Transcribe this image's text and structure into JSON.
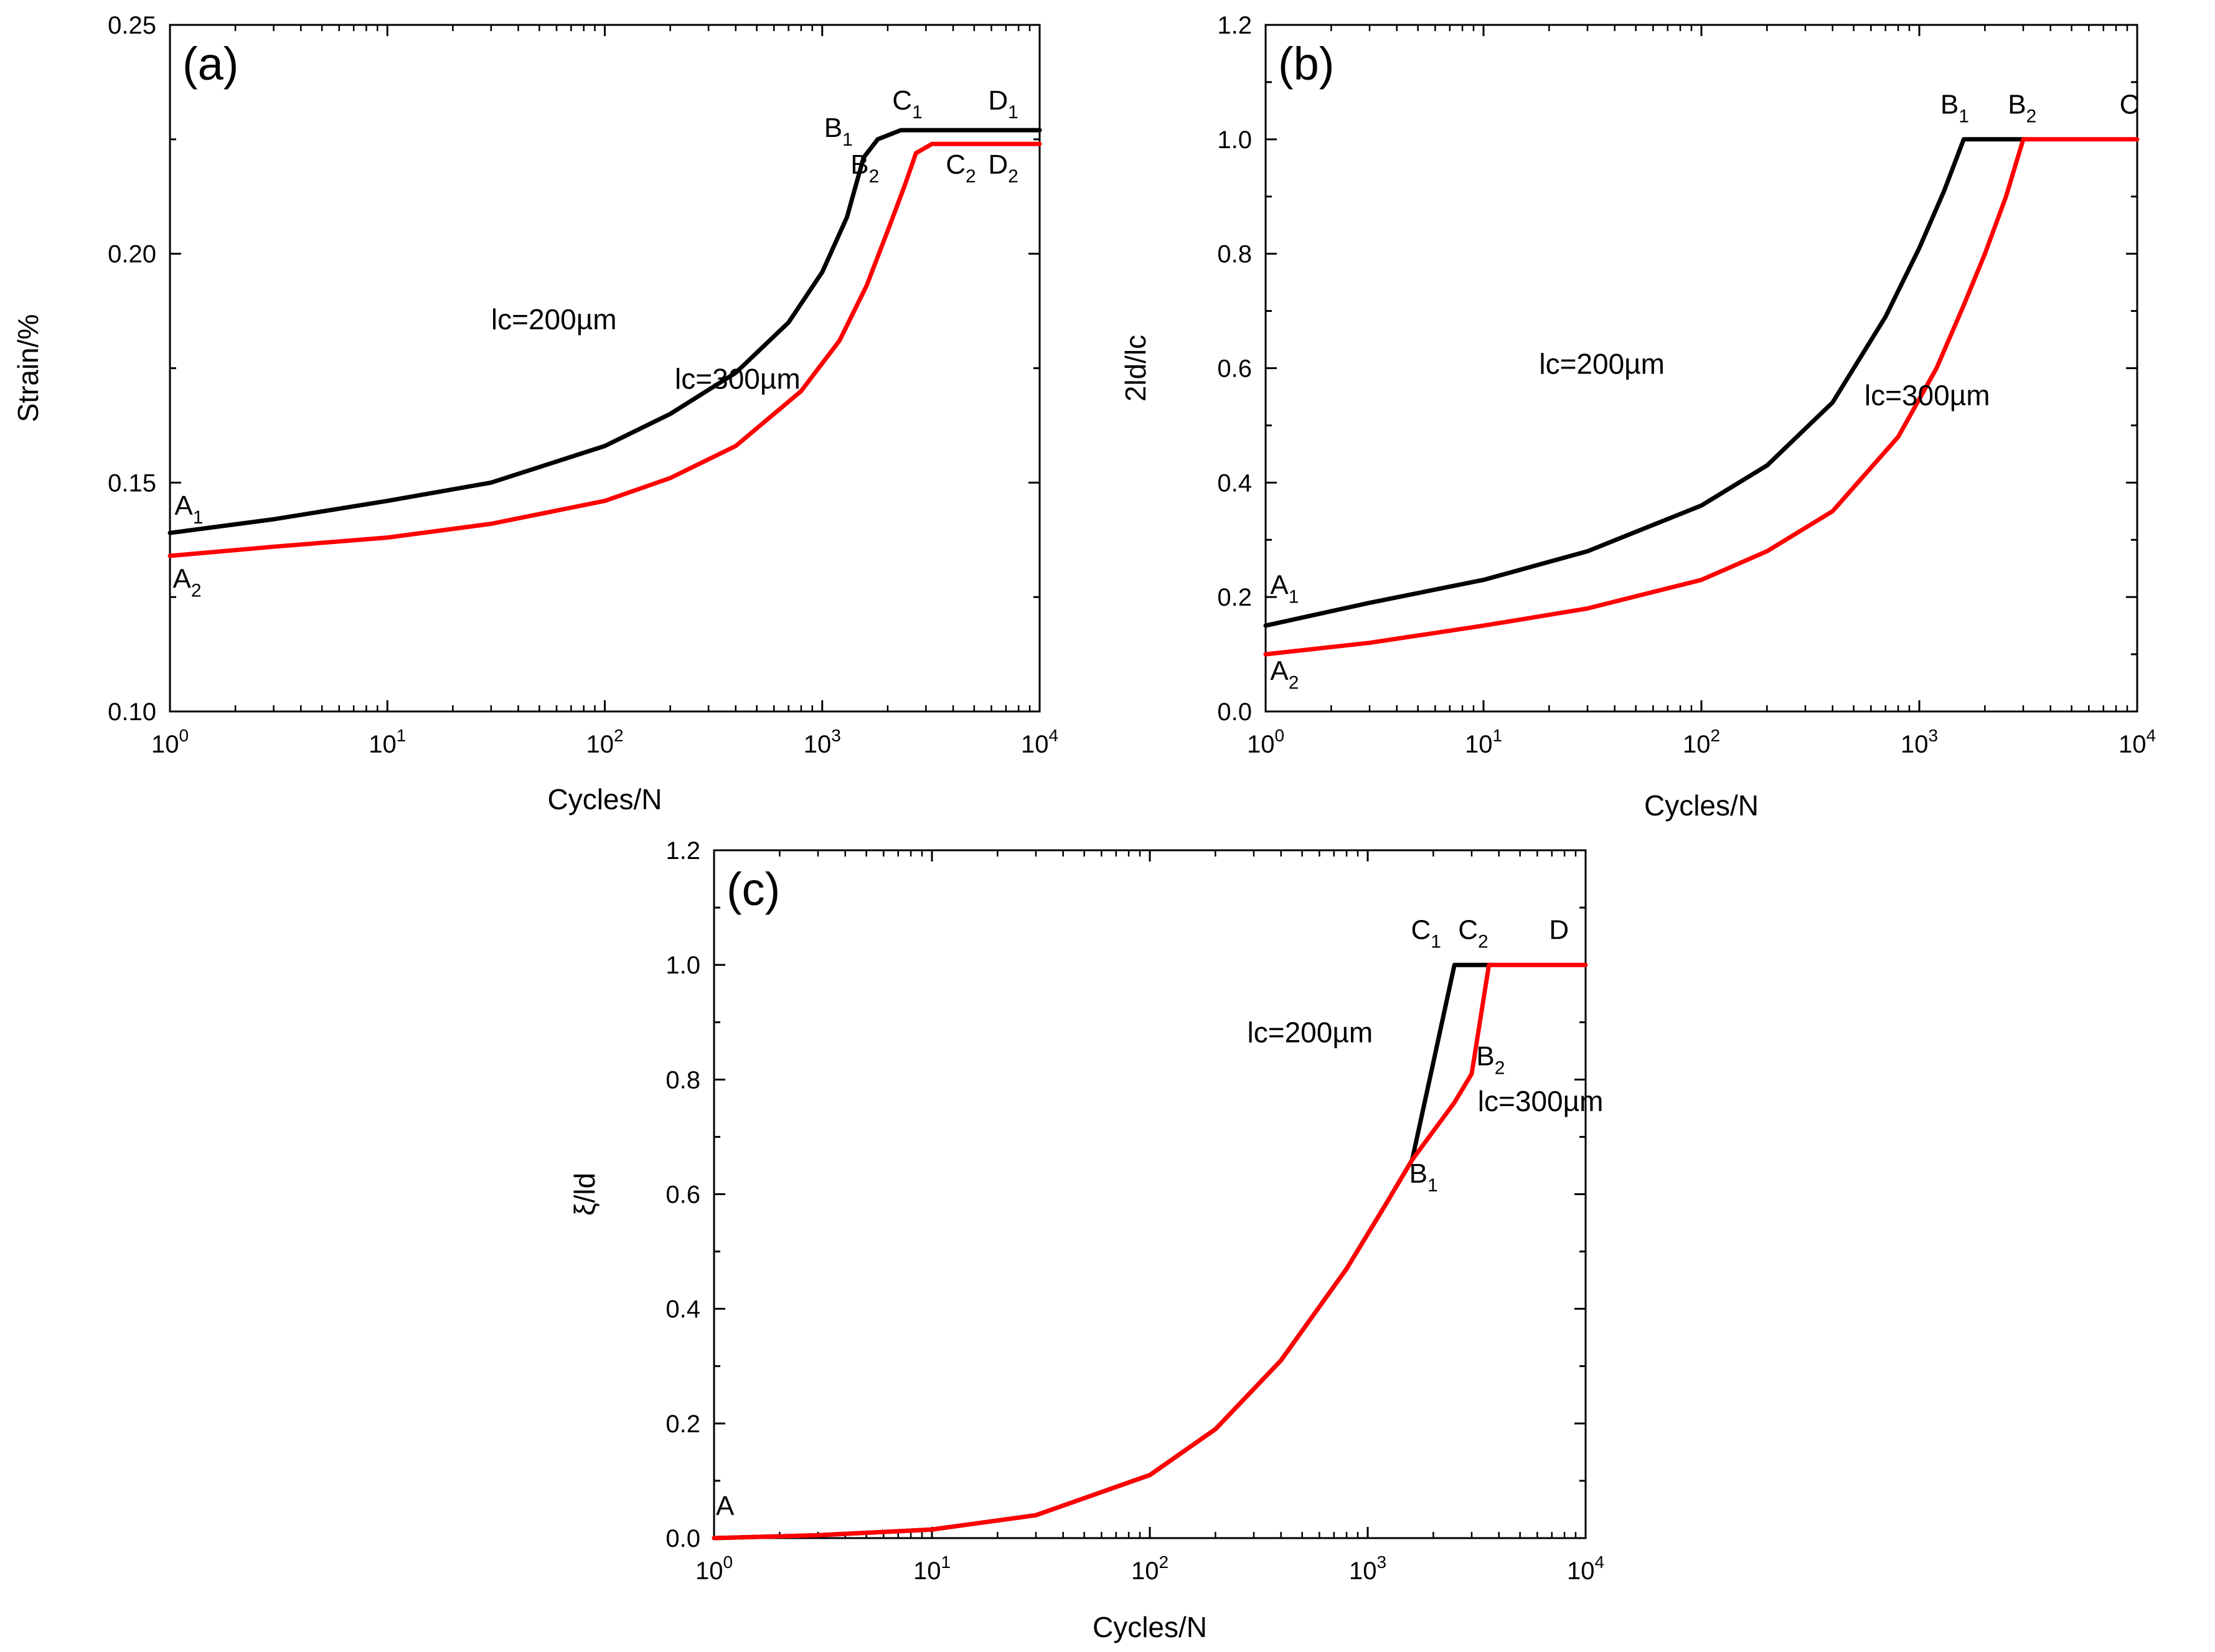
{
  "figure": {
    "background": "#ffffff"
  },
  "chart_data": [
    {
      "id": "a",
      "type": "line",
      "panel_label": "(a)",
      "xlabel": "Cycles/N",
      "ylabel": "Strain/%",
      "xscale": "log",
      "xlim": [
        1,
        10000
      ],
      "ylim": [
        0.1,
        0.25
      ],
      "xticks": [
        1,
        10,
        100,
        1000,
        10000
      ],
      "xtick_labels": [
        {
          "base": "10",
          "exp": "0"
        },
        {
          "base": "10",
          "exp": "1"
        },
        {
          "base": "10",
          "exp": "2"
        },
        {
          "base": "10",
          "exp": "3"
        },
        {
          "base": "10",
          "exp": "4"
        }
      ],
      "yticks": [
        0.1,
        0.15,
        0.2,
        0.25
      ],
      "ytick_labels": [
        "0.10",
        "0.15",
        "0.20",
        "0.25"
      ],
      "series": [
        {
          "name": "lc=200µm",
          "color": "#000000",
          "x": [
            1,
            3,
            10,
            30,
            100,
            200,
            400,
            700,
            1000,
            1300,
            1550,
            1800,
            2300,
            10000
          ],
          "y": [
            0.139,
            0.142,
            0.146,
            0.15,
            0.158,
            0.165,
            0.174,
            0.185,
            0.196,
            0.208,
            0.221,
            0.225,
            0.227,
            0.227
          ]
        },
        {
          "name": "lc=300µm",
          "color": "#ff0000",
          "x": [
            1,
            3,
            10,
            30,
            100,
            200,
            400,
            800,
            1200,
            1600,
            2000,
            2400,
            2700,
            3200,
            10000
          ],
          "y": [
            0.134,
            0.136,
            0.138,
            0.141,
            0.146,
            0.151,
            0.158,
            0.17,
            0.181,
            0.193,
            0.205,
            0.215,
            0.222,
            0.224,
            0.224
          ]
        }
      ],
      "point_labels": [
        {
          "base": "A",
          "sub": "1",
          "x": 1.05,
          "y": 0.143
        },
        {
          "base": "A",
          "sub": "2",
          "x": 1.03,
          "y": 0.127
        },
        {
          "base": "B",
          "sub": "1",
          "x": 1020,
          "y": 0.2255
        },
        {
          "base": "C",
          "sub": "1",
          "x": 2100,
          "y": 0.2315
        },
        {
          "base": "D",
          "sub": "1",
          "x": 5800,
          "y": 0.2315
        },
        {
          "base": "B",
          "sub": "2",
          "x": 1350,
          "y": 0.2175
        },
        {
          "base": "C",
          "sub": "2",
          "x": 3700,
          "y": 0.2175
        },
        {
          "base": "D",
          "sub": "2",
          "x": 5800,
          "y": 0.2175
        }
      ],
      "curve_labels": [
        {
          "text": "lc=200µm",
          "x": 30,
          "y": 0.1835
        },
        {
          "text": "lc=300µm",
          "x": 210,
          "y": 0.1705
        }
      ]
    },
    {
      "id": "b",
      "type": "line",
      "panel_label": "(b)",
      "xlabel": "Cycles/N",
      "ylabel": "2ld/lc",
      "xscale": "log",
      "xlim": [
        1,
        10000
      ],
      "ylim": [
        0.0,
        1.2
      ],
      "xticks": [
        1,
        10,
        100,
        1000,
        10000
      ],
      "xtick_labels": [
        {
          "base": "10",
          "exp": "0"
        },
        {
          "base": "10",
          "exp": "1"
        },
        {
          "base": "10",
          "exp": "2"
        },
        {
          "base": "10",
          "exp": "3"
        },
        {
          "base": "10",
          "exp": "4"
        }
      ],
      "yticks": [
        0.0,
        0.2,
        0.4,
        0.6,
        0.8,
        1.0,
        1.2
      ],
      "ytick_labels": [
        "0.0",
        "0.2",
        "0.4",
        "0.6",
        "0.8",
        "1.0",
        "1.2"
      ],
      "series": [
        {
          "name": "lc=200µm",
          "color": "#000000",
          "x": [
            1,
            3,
            10,
            30,
            100,
            200,
            400,
            700,
            1000,
            1300,
            1600,
            3000
          ],
          "y": [
            0.15,
            0.19,
            0.23,
            0.28,
            0.36,
            0.43,
            0.54,
            0.69,
            0.81,
            0.91,
            1.0,
            1.0
          ]
        },
        {
          "name": "lc=300µm",
          "color": "#ff0000",
          "x": [
            1,
            3,
            10,
            30,
            100,
            200,
            400,
            800,
            1200,
            1600,
            2000,
            2500,
            3000,
            10000
          ],
          "y": [
            0.1,
            0.12,
            0.15,
            0.18,
            0.23,
            0.28,
            0.35,
            0.48,
            0.6,
            0.71,
            0.8,
            0.9,
            1.0,
            1.0
          ]
        }
      ],
      "point_labels": [
        {
          "base": "A",
          "sub": "1",
          "x": 1.05,
          "y": 0.205
        },
        {
          "base": "A",
          "sub": "2",
          "x": 1.05,
          "y": 0.055
        },
        {
          "base": "B",
          "sub": "1",
          "x": 1250,
          "y": 1.045
        },
        {
          "base": "B",
          "sub": "2",
          "x": 2550,
          "y": 1.045
        },
        {
          "base": "C",
          "sub": "",
          "x": 8300,
          "y": 1.045
        }
      ],
      "curve_labels": [
        {
          "text": "lc=200µm",
          "x": 18,
          "y": 0.59
        },
        {
          "text": "lc=300µm",
          "x": 560,
          "y": 0.535
        }
      ]
    },
    {
      "id": "c",
      "type": "line",
      "panel_label": "(c)",
      "xlabel": "Cycles/N",
      "ylabel": "ξ/ld",
      "xscale": "log",
      "xlim": [
        1,
        10000
      ],
      "ylim": [
        0.0,
        1.2
      ],
      "xticks": [
        1,
        10,
        100,
        1000,
        10000
      ],
      "xtick_labels": [
        {
          "base": "10",
          "exp": "0"
        },
        {
          "base": "10",
          "exp": "1"
        },
        {
          "base": "10",
          "exp": "2"
        },
        {
          "base": "10",
          "exp": "3"
        },
        {
          "base": "10",
          "exp": "4"
        }
      ],
      "yticks": [
        0.0,
        0.2,
        0.4,
        0.6,
        0.8,
        1.0,
        1.2
      ],
      "ytick_labels": [
        "0.0",
        "0.2",
        "0.4",
        "0.6",
        "0.8",
        "1.0",
        "1.2"
      ],
      "series": [
        {
          "name": "lc=200µm",
          "color": "#000000",
          "x": [
            1,
            3,
            10,
            30,
            100,
            200,
            400,
            800,
            1200,
            1600,
            2000,
            2500,
            3700
          ],
          "y": [
            0.0,
            0.005,
            0.015,
            0.04,
            0.11,
            0.19,
            0.31,
            0.47,
            0.58,
            0.66,
            0.83,
            1.0,
            1.0
          ]
        },
        {
          "name": "lc=300µm",
          "color": "#ff0000",
          "x": [
            1,
            3,
            10,
            30,
            100,
            200,
            400,
            800,
            1200,
            1600,
            2000,
            2500,
            3000,
            3600,
            10000
          ],
          "y": [
            0.0,
            0.005,
            0.015,
            0.04,
            0.11,
            0.19,
            0.31,
            0.47,
            0.58,
            0.66,
            0.71,
            0.76,
            0.81,
            1.0,
            1.0
          ]
        }
      ],
      "point_labels": [
        {
          "base": "A",
          "sub": "",
          "x": 1.02,
          "y": 0.04
        },
        {
          "base": "C",
          "sub": "1",
          "x": 1580,
          "y": 1.045
        },
        {
          "base": "C",
          "sub": "2",
          "x": 2600,
          "y": 1.045
        },
        {
          "base": "D",
          "sub": "",
          "x": 6800,
          "y": 1.045
        },
        {
          "base": "B",
          "sub": "2",
          "x": 3150,
          "y": 0.825
        },
        {
          "base": "B",
          "sub": "1",
          "x": 1550,
          "y": 0.62
        }
      ],
      "curve_labels": [
        {
          "text": "lc=200µm",
          "x": 280,
          "y": 0.865
        },
        {
          "text": "lc=300µm",
          "x": 3200,
          "y": 0.745
        }
      ]
    }
  ]
}
